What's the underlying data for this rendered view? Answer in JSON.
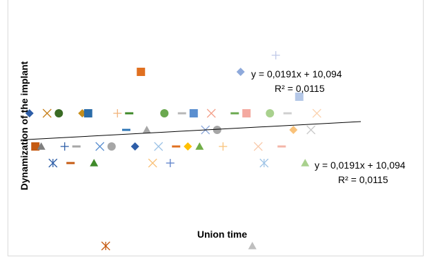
{
  "chart_data": {
    "type": "scatter",
    "title": "",
    "xlabel": "Union time",
    "ylabel": "Dynamization of the implant",
    "grid": false,
    "legend": "none",
    "xlim": [
      0,
      60
    ],
    "ylim": [
      0,
      30
    ],
    "trendline": {
      "slope": 0.0191,
      "intercept": 10.094,
      "r2": 0.0115,
      "equation_label": "y = 0,0191x + 10,094",
      "r2_label": "R² = 0,0115"
    },
    "equation_label_2": "y = 0,0191x + 10,094",
    "r2_label_2": "R² = 0,0115",
    "points": [
      {
        "x": 1.5,
        "y": 16.5,
        "marker": "diamond",
        "color": "#2e5ea8"
      },
      {
        "x": 4.5,
        "y": 16.5,
        "marker": "x",
        "color": "#c67f1a"
      },
      {
        "x": 6.5,
        "y": 16.5,
        "marker": "circle",
        "color": "#3a6b24"
      },
      {
        "x": 10.5,
        "y": 16.5,
        "marker": "diamond",
        "color": "#c68e1a"
      },
      {
        "x": 11.5,
        "y": 16.5,
        "marker": "square",
        "color": "#2b6ca8"
      },
      {
        "x": 16.5,
        "y": 16.5,
        "marker": "plus",
        "color": "#f2b37a"
      },
      {
        "x": 18.5,
        "y": 16.5,
        "marker": "dash",
        "color": "#3f8a2a"
      },
      {
        "x": 20.5,
        "y": 21.5,
        "marker": "square",
        "color": "#e07020"
      },
      {
        "x": 24.5,
        "y": 16.5,
        "marker": "circle",
        "color": "#6aa84f"
      },
      {
        "x": 27.5,
        "y": 16.5,
        "marker": "dash",
        "color": "#b7b7b7"
      },
      {
        "x": 29.5,
        "y": 16.5,
        "marker": "square",
        "color": "#5b8fd0"
      },
      {
        "x": 32.5,
        "y": 16.5,
        "marker": "x",
        "color": "#f4a08a"
      },
      {
        "x": 36.5,
        "y": 16.5,
        "marker": "dash",
        "color": "#6aa84f"
      },
      {
        "x": 38.5,
        "y": 16.5,
        "marker": "square",
        "color": "#f4a9a0"
      },
      {
        "x": 37.5,
        "y": 21.5,
        "marker": "diamond",
        "color": "#8ea9db"
      },
      {
        "x": 42.5,
        "y": 16.5,
        "marker": "circle",
        "color": "#a9d18e"
      },
      {
        "x": 45.5,
        "y": 16.5,
        "marker": "dash",
        "color": "#cfcfcf"
      },
      {
        "x": 43.5,
        "y": 23.5,
        "marker": "plus",
        "color": "#c0c8e8"
      },
      {
        "x": 47.5,
        "y": 18.5,
        "marker": "square",
        "color": "#b4c7e7"
      },
      {
        "x": 50.5,
        "y": 16.5,
        "marker": "x",
        "color": "#fbd3b0"
      },
      {
        "x": 18.0,
        "y": 14.5,
        "marker": "dash",
        "color": "#2e75b6"
      },
      {
        "x": 21.5,
        "y": 14.5,
        "marker": "triangle",
        "color": "#a6a6a6"
      },
      {
        "x": 31.5,
        "y": 14.5,
        "marker": "x",
        "color": "#8ea9db"
      },
      {
        "x": 33.5,
        "y": 14.5,
        "marker": "circle",
        "color": "#a6a6a6"
      },
      {
        "x": 46.5,
        "y": 14.5,
        "marker": "diamond",
        "color": "#f9c27a"
      },
      {
        "x": 49.5,
        "y": 14.5,
        "marker": "x",
        "color": "#c9c9c9"
      },
      {
        "x": 2.5,
        "y": 12.5,
        "marker": "square",
        "color": "#c55a11"
      },
      {
        "x": 3.5,
        "y": 12.5,
        "marker": "triangle",
        "color": "#7f7f7f"
      },
      {
        "x": 7.5,
        "y": 12.5,
        "marker": "plus",
        "color": "#2e5ea8"
      },
      {
        "x": 9.5,
        "y": 12.5,
        "marker": "dash",
        "color": "#a6a6a6"
      },
      {
        "x": 13.5,
        "y": 12.5,
        "marker": "x",
        "color": "#5b8fd0"
      },
      {
        "x": 15.5,
        "y": 12.5,
        "marker": "circle",
        "color": "#a6a6a6"
      },
      {
        "x": 19.5,
        "y": 12.5,
        "marker": "diamond",
        "color": "#2e5ea8"
      },
      {
        "x": 23.5,
        "y": 12.5,
        "marker": "x",
        "color": "#9dc3e6"
      },
      {
        "x": 26.5,
        "y": 12.5,
        "marker": "dash",
        "color": "#e07020"
      },
      {
        "x": 28.5,
        "y": 12.5,
        "marker": "diamond",
        "color": "#ffc000"
      },
      {
        "x": 30.5,
        "y": 12.5,
        "marker": "triangle",
        "color": "#70ad47"
      },
      {
        "x": 34.5,
        "y": 12.5,
        "marker": "plus",
        "color": "#f9c27a"
      },
      {
        "x": 40.5,
        "y": 12.5,
        "marker": "x",
        "color": "#f8cbad"
      },
      {
        "x": 44.5,
        "y": 12.5,
        "marker": "dash",
        "color": "#f4b6a8"
      },
      {
        "x": 5.5,
        "y": 10.5,
        "marker": "asterisk",
        "color": "#2e5ea8"
      },
      {
        "x": 8.5,
        "y": 10.5,
        "marker": "dash",
        "color": "#c55a11"
      },
      {
        "x": 12.5,
        "y": 10.5,
        "marker": "triangle",
        "color": "#3f8a2a"
      },
      {
        "x": 22.5,
        "y": 10.5,
        "marker": "x",
        "color": "#f9c27a"
      },
      {
        "x": 25.5,
        "y": 10.5,
        "marker": "plus",
        "color": "#5b7fc8"
      },
      {
        "x": 41.5,
        "y": 10.5,
        "marker": "asterisk",
        "color": "#9dc3e6"
      },
      {
        "x": 48.5,
        "y": 10.5,
        "marker": "triangle",
        "color": "#a9d18e"
      },
      {
        "x": 14.5,
        "y": 0.5,
        "marker": "asterisk",
        "color": "#c55a11"
      },
      {
        "x": 39.5,
        "y": 0.5,
        "marker": "triangle",
        "color": "#bfbfbf"
      }
    ]
  }
}
